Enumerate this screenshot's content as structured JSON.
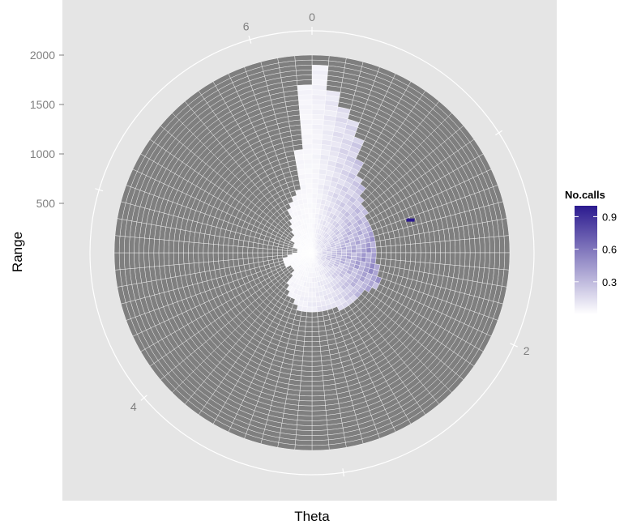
{
  "chart_data": {
    "type": "heatmap",
    "coord": "polar",
    "xlabel": "Theta",
    "ylabel": "Range",
    "theta_range": [
      0,
      6.2832
    ],
    "theta_ticks": [
      "0",
      "2",
      "4",
      "6"
    ],
    "range_ticks": [
      "500",
      "1000",
      "1500",
      "2000"
    ],
    "range_max": 2000,
    "range_bins": 40,
    "theta_bins": 72,
    "grid": true,
    "na_fill_color": "#7f7f7f",
    "colorscale": {
      "low": "#ffffff",
      "high": "#2b1a8f"
    },
    "legend": {
      "title": "No.calls",
      "position": "right",
      "ticks": [
        "0.3",
        "0.6",
        "0.9"
      ],
      "range": [
        0,
        1
      ]
    },
    "coverage_profile": [
      {
        "theta": 0.0,
        "max_range": 2000
      },
      {
        "theta": 0.15,
        "max_range": 1550
      },
      {
        "theta": 0.35,
        "max_range": 1300
      },
      {
        "theta": 0.55,
        "max_range": 900
      },
      {
        "theta": 0.8,
        "max_range": 700
      },
      {
        "theta": 1.05,
        "max_range": 600
      },
      {
        "theta": 1.3,
        "max_range": 640
      },
      {
        "theta": 1.55,
        "max_range": 600
      },
      {
        "theta": 1.8,
        "max_range": 680
      },
      {
        "theta": 2.05,
        "max_range": 720
      },
      {
        "theta": 2.3,
        "max_range": 620
      },
      {
        "theta": 2.55,
        "max_range": 640
      },
      {
        "theta": 2.8,
        "max_range": 560
      },
      {
        "theta": 3.05,
        "max_range": 560
      },
      {
        "theta": 3.35,
        "max_range": 560
      },
      {
        "theta": 3.65,
        "max_range": 460
      },
      {
        "theta": 4.0,
        "max_range": 220
      },
      {
        "theta": 4.4,
        "max_range": 300
      },
      {
        "theta": 4.75,
        "max_range": 120
      },
      {
        "theta": 5.1,
        "max_range": 160
      },
      {
        "theta": 5.45,
        "max_range": 240
      },
      {
        "theta": 5.85,
        "max_range": 480
      },
      {
        "theta": 6.1,
        "max_range": 640
      },
      {
        "theta": 6.2832,
        "max_range": 2000
      }
    ],
    "intensity_profile": [
      {
        "theta": 0.0,
        "value": 0.05
      },
      {
        "theta": 0.4,
        "value": 0.22
      },
      {
        "theta": 0.9,
        "value": 0.3
      },
      {
        "theta": 1.4,
        "value": 0.42
      },
      {
        "theta": 1.8,
        "value": 0.48
      },
      {
        "theta": 2.2,
        "value": 0.32
      },
      {
        "theta": 2.7,
        "value": 0.14
      },
      {
        "theta": 3.2,
        "value": 0.08
      },
      {
        "theta": 4.0,
        "value": 0.03
      },
      {
        "theta": 5.0,
        "value": 0.02
      },
      {
        "theta": 6.2832,
        "value": 0.05
      }
    ],
    "outlier": {
      "theta": 1.25,
      "range": 1050,
      "value": 1.0
    }
  }
}
